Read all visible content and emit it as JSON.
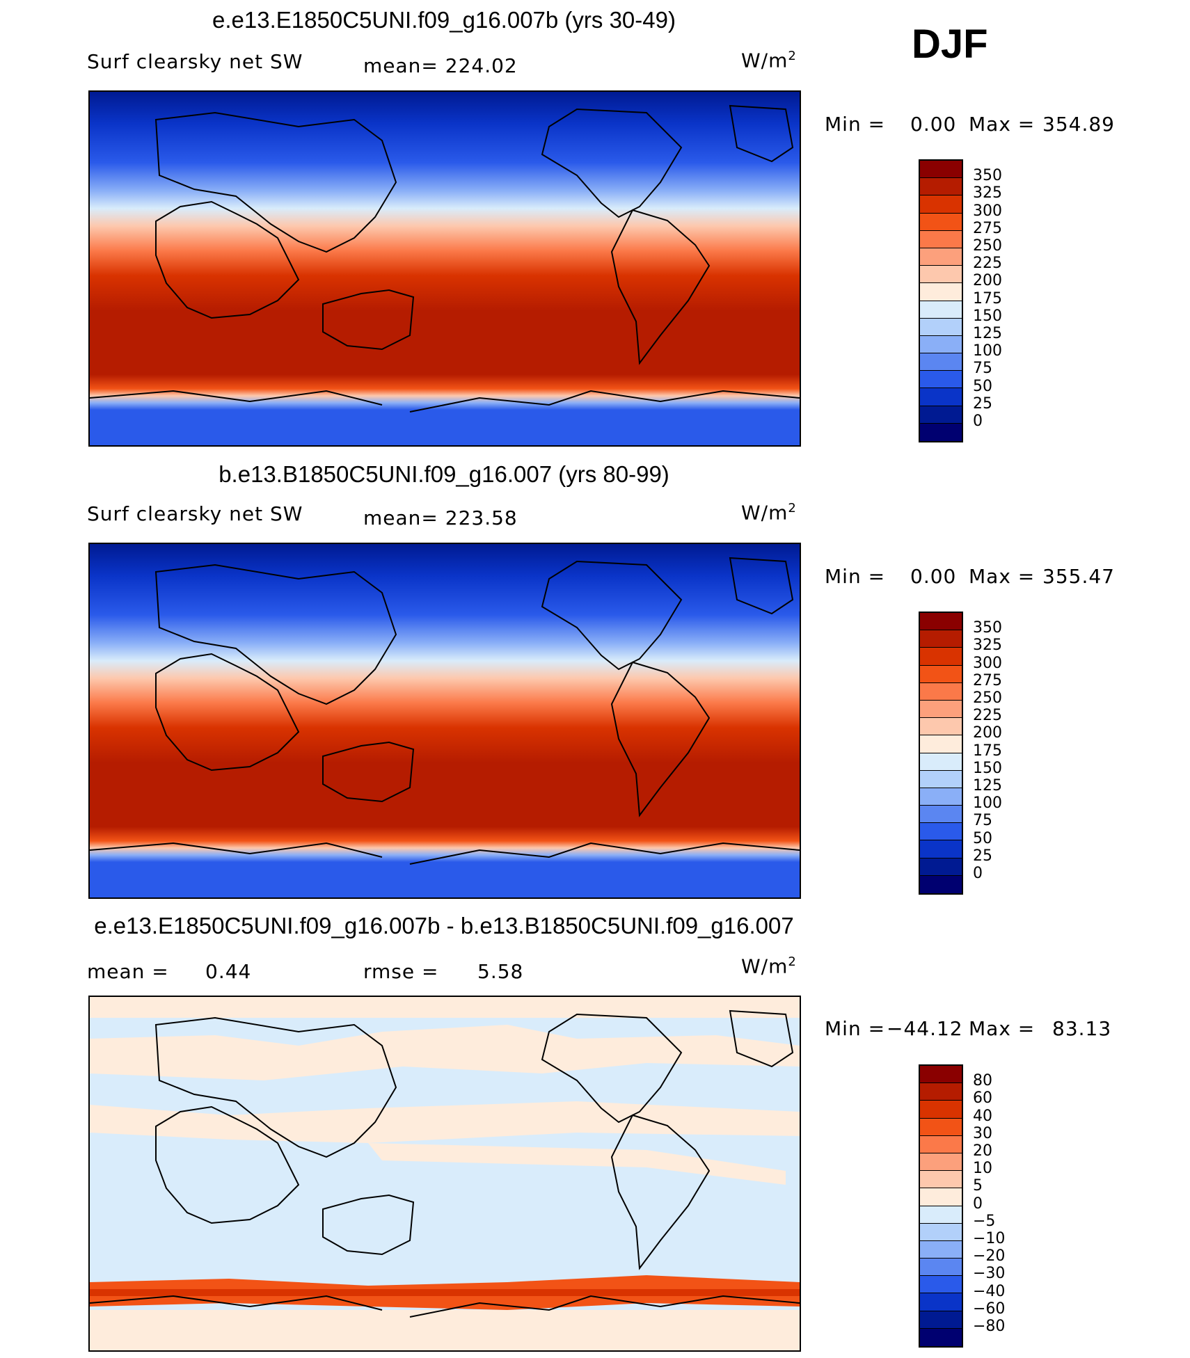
{
  "season": "DJF",
  "units_base": "W/m",
  "units_exp": "2",
  "chart_data": [
    {
      "type": "heatmap",
      "title": "e.e13.E1850C5UNI.f09_g16.007b (yrs 30-49)",
      "variable": "Surf clearsky net SW",
      "mean_label": "mean= 224.02",
      "min_label": "Min =",
      "min_value": "0.00",
      "max_label": "Max =",
      "max_value": "354.89",
      "colorbar_levels": [
        "350",
        "325",
        "300",
        "275",
        "250",
        "225",
        "200",
        "175",
        "150",
        "125",
        "100",
        "75",
        "50",
        "25",
        "0"
      ],
      "colorbar_colors": [
        "#8a0000",
        "#b51c00",
        "#d93300",
        "#f25316",
        "#fb7949",
        "#fca07c",
        "#fdc8ad",
        "#feecdc",
        "#d9ecfb",
        "#b2d0fa",
        "#8aaff7",
        "#5b86f1",
        "#2a5aea",
        "#0a34c8",
        "#001a92",
        "#000070"
      ],
      "value_range": [
        0,
        354.89
      ]
    },
    {
      "type": "heatmap",
      "title": "b.e13.B1850C5UNI.f09_g16.007 (yrs 80-99)",
      "variable": "Surf clearsky net SW",
      "mean_label": "mean= 223.58",
      "min_label": "Min =",
      "min_value": "0.00",
      "max_label": "Max =",
      "max_value": "355.47",
      "colorbar_levels": [
        "350",
        "325",
        "300",
        "275",
        "250",
        "225",
        "200",
        "175",
        "150",
        "125",
        "100",
        "75",
        "50",
        "25",
        "0"
      ],
      "colorbar_colors": [
        "#8a0000",
        "#b51c00",
        "#d93300",
        "#f25316",
        "#fb7949",
        "#fca07c",
        "#fdc8ad",
        "#feecdc",
        "#d9ecfb",
        "#b2d0fa",
        "#8aaff7",
        "#5b86f1",
        "#2a5aea",
        "#0a34c8",
        "#001a92",
        "#000070"
      ],
      "value_range": [
        0,
        355.47
      ]
    },
    {
      "type": "heatmap",
      "title": "e.e13.E1850C5UNI.f09_g16.007b - b.e13.B1850C5UNI.f09_g16.007",
      "variable": "",
      "mean_label": "mean =",
      "mean_value": "0.44",
      "rmse_label": "rmse =",
      "rmse_value": "5.58",
      "min_label": "Min =",
      "min_value": "−44.12",
      "max_label": "Max =",
      "max_value": "83.13",
      "colorbar_levels": [
        "80",
        "60",
        "40",
        "30",
        "20",
        "10",
        "5",
        "0",
        "−5",
        "−10",
        "−20",
        "−30",
        "−40",
        "−60",
        "−80"
      ],
      "colorbar_colors": [
        "#8a0000",
        "#b51c00",
        "#d93300",
        "#f25316",
        "#fb7949",
        "#fca07c",
        "#fdc8ad",
        "#feecdc",
        "#d9ecfb",
        "#b2d0fa",
        "#8aaff7",
        "#5b86f1",
        "#2a5aea",
        "#0a34c8",
        "#001a92",
        "#000070"
      ],
      "value_range": [
        -44.12,
        83.13
      ]
    }
  ]
}
